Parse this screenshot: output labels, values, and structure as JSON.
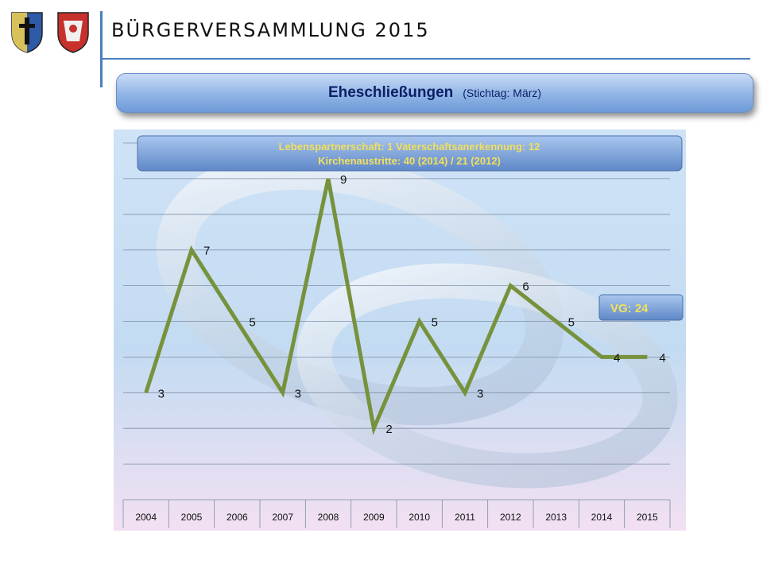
{
  "header": {
    "title": "BÜRGERVERSAMMLUNG 2015"
  },
  "banner": {
    "title": "Eheschließungen",
    "subtitle": "(Stichtag: März)"
  },
  "info_box": {
    "line1": "Lebenspartnerschaft: 1     Vaterschaftsanerkennung: 12",
    "line2": "Kirchenaustritte: 40 (2014)   /   21 (2012)"
  },
  "vg_box": {
    "label": "VG:  24"
  },
  "colors": {
    "line": "#77923c",
    "accent": "#4a7ec0",
    "box_text": "#f2e05a"
  },
  "chart_data": {
    "type": "line",
    "categories": [
      "2004",
      "2005",
      "2006",
      "2007",
      "2008",
      "2009",
      "2010",
      "2011",
      "2012",
      "2013",
      "2014",
      "2015"
    ],
    "values": [
      3,
      7,
      5,
      3,
      9,
      2,
      5,
      3,
      6,
      5,
      4,
      4
    ],
    "ylim": [
      0,
      10
    ],
    "grid": true,
    "data_labels": true,
    "title": "",
    "xlabel": "",
    "ylabel": ""
  }
}
